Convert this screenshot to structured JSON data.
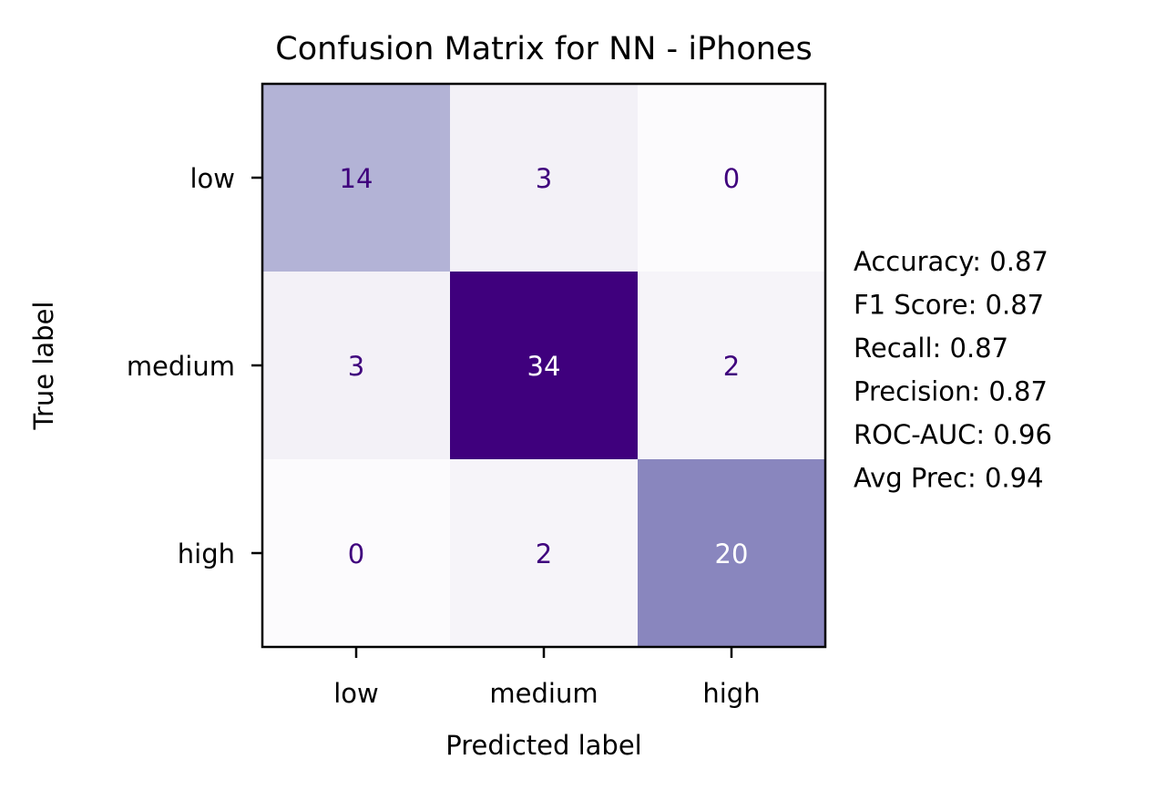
{
  "chart_data": {
    "type": "heatmap",
    "title": "Confusion Matrix for NN - iPhones",
    "xlabel": "Predicted label",
    "ylabel": "True label",
    "row_labels": [
      "low",
      "medium",
      "high"
    ],
    "col_labels": [
      "low",
      "medium",
      "high"
    ],
    "values": [
      [
        14,
        3,
        0
      ],
      [
        3,
        34,
        2
      ],
      [
        0,
        2,
        20
      ]
    ],
    "color_range": [
      0,
      34
    ],
    "colors": {
      "low": "#fcfbfd",
      "high": "#3f007d",
      "text_dark": "#3f007d",
      "text_light": "#ffffff"
    },
    "metrics": [
      "Accuracy: 0.87",
      "F1 Score: 0.87",
      "Recall: 0.87",
      "Precision: 0.87",
      "ROC-AUC: 0.96",
      "Avg Prec: 0.94"
    ]
  }
}
